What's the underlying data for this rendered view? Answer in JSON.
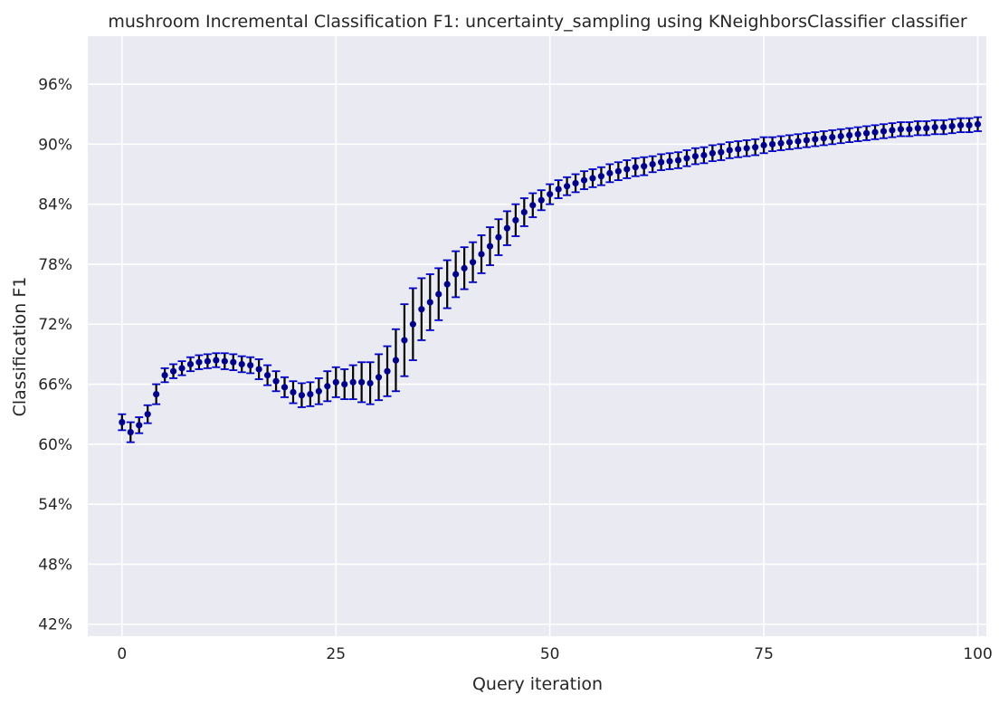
{
  "chart_data": {
    "type": "scatter",
    "title": "mushroom Incremental Classification F1: uncertainty_sampling using KNeighborsClassifier classifier",
    "xlabel": "Query iteration",
    "ylabel": "Classification F1",
    "xlim": [
      -4,
      101
    ],
    "ylim": [
      40.8,
      100.8
    ],
    "xticks": [
      0,
      25,
      50,
      75,
      100
    ],
    "xtick_labels": [
      "0",
      "25",
      "50",
      "75",
      "100"
    ],
    "yticks": [
      42,
      48,
      54,
      60,
      66,
      72,
      78,
      84,
      90,
      96
    ],
    "ytick_labels": [
      "42%",
      "48%",
      "54%",
      "60%",
      "66%",
      "72%",
      "78%",
      "84%",
      "90%",
      "96%"
    ],
    "grid": true,
    "legend": "none",
    "colors": {
      "background": "#EAEAF2",
      "grid": "#FFFFFF",
      "marker": "#00008B",
      "errorbar": "#000000",
      "cap": "#0000CD"
    },
    "x": [
      0,
      1,
      2,
      3,
      4,
      5,
      6,
      7,
      8,
      9,
      10,
      11,
      12,
      13,
      14,
      15,
      16,
      17,
      18,
      19,
      20,
      21,
      22,
      23,
      24,
      25,
      26,
      27,
      28,
      29,
      30,
      31,
      32,
      33,
      34,
      35,
      36,
      37,
      38,
      39,
      40,
      41,
      42,
      43,
      44,
      45,
      46,
      47,
      48,
      49,
      50,
      51,
      52,
      53,
      54,
      55,
      56,
      57,
      58,
      59,
      60,
      61,
      62,
      63,
      64,
      65,
      66,
      67,
      68,
      69,
      70,
      71,
      72,
      73,
      74,
      75,
      76,
      77,
      78,
      79,
      80,
      81,
      82,
      83,
      84,
      85,
      86,
      87,
      88,
      89,
      90,
      91,
      92,
      93,
      94,
      95,
      96,
      97,
      98,
      99,
      100
    ],
    "y": [
      62.2,
      61.2,
      61.9,
      63.0,
      65.0,
      66.9,
      67.3,
      67.6,
      68.0,
      68.2,
      68.3,
      68.4,
      68.3,
      68.2,
      68.0,
      67.9,
      67.5,
      66.9,
      66.3,
      65.7,
      65.2,
      64.9,
      65.0,
      65.3,
      65.8,
      66.2,
      66.0,
      66.2,
      66.2,
      66.1,
      66.7,
      67.3,
      68.4,
      70.4,
      72.0,
      73.5,
      74.2,
      75.0,
      76.0,
      77.0,
      77.6,
      78.2,
      79.0,
      79.8,
      80.7,
      81.6,
      82.4,
      83.2,
      83.9,
      84.4,
      85.0,
      85.5,
      85.8,
      86.1,
      86.4,
      86.6,
      86.8,
      87.1,
      87.3,
      87.5,
      87.7,
      87.8,
      88.0,
      88.2,
      88.3,
      88.4,
      88.6,
      88.8,
      88.9,
      89.1,
      89.2,
      89.4,
      89.5,
      89.6,
      89.7,
      89.9,
      90.0,
      90.1,
      90.2,
      90.3,
      90.4,
      90.5,
      90.6,
      90.7,
      90.8,
      90.9,
      91.0,
      91.1,
      91.2,
      91.3,
      91.4,
      91.5,
      91.5,
      91.6,
      91.6,
      91.7,
      91.7,
      91.8,
      91.9,
      91.9,
      92.0
    ],
    "err": [
      0.8,
      1.0,
      0.8,
      0.9,
      1.0,
      0.7,
      0.7,
      0.7,
      0.7,
      0.7,
      0.7,
      0.7,
      0.8,
      0.8,
      0.8,
      0.8,
      1.0,
      1.0,
      1.0,
      1.0,
      1.1,
      1.2,
      1.2,
      1.3,
      1.5,
      1.5,
      1.5,
      1.7,
      2.0,
      2.1,
      2.3,
      2.5,
      3.1,
      3.6,
      3.6,
      3.1,
      2.8,
      2.6,
      2.4,
      2.3,
      2.1,
      2.0,
      1.9,
      1.9,
      1.8,
      1.7,
      1.6,
      1.4,
      1.2,
      1.0,
      1.0,
      0.9,
      0.9,
      0.9,
      0.9,
      0.9,
      0.9,
      0.9,
      0.9,
      0.9,
      0.9,
      0.9,
      0.8,
      0.8,
      0.8,
      0.8,
      0.8,
      0.8,
      0.8,
      0.8,
      0.8,
      0.8,
      0.8,
      0.8,
      0.8,
      0.8,
      0.7,
      0.7,
      0.7,
      0.7,
      0.7,
      0.7,
      0.7,
      0.7,
      0.7,
      0.7,
      0.7,
      0.7,
      0.7,
      0.7,
      0.7,
      0.7,
      0.7,
      0.7,
      0.7,
      0.7,
      0.7,
      0.7,
      0.7,
      0.7,
      0.7
    ]
  }
}
